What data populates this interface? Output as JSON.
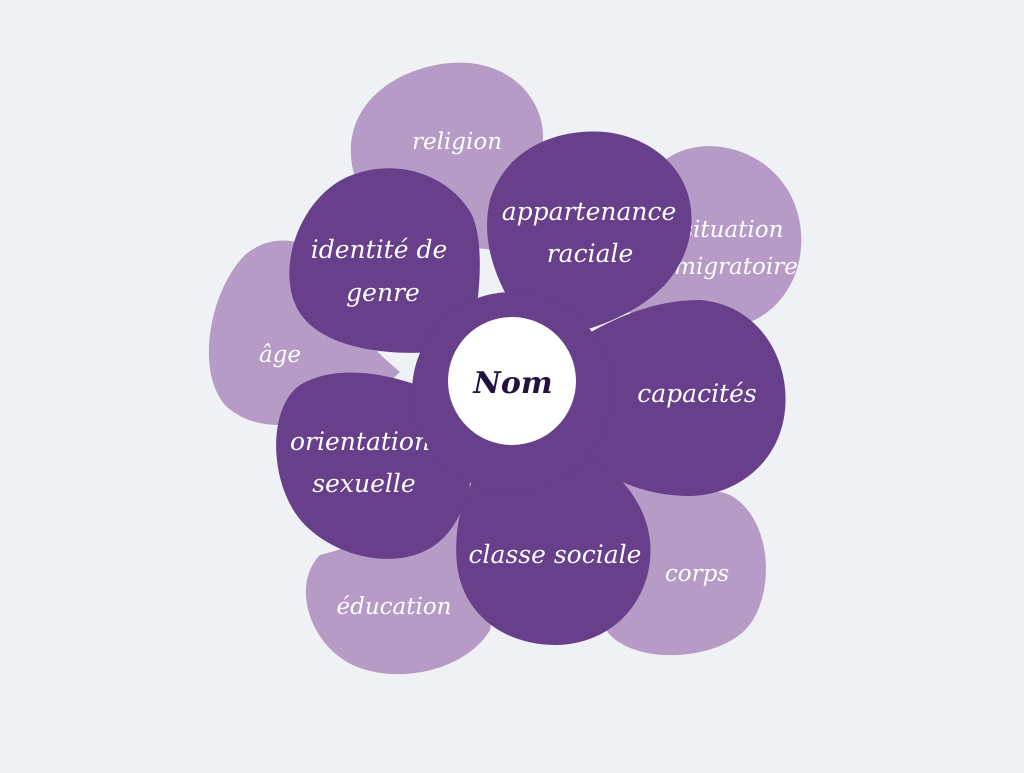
{
  "colors": {
    "background": "#eff1f4",
    "outer_petal": "#b59bc6",
    "inner_petal": "#673f8a",
    "center_fill": "#ffffff",
    "petal_text": "#ffffff",
    "center_text": "#23123f"
  },
  "center": {
    "label": "Nom"
  },
  "outer_petals": {
    "religion": {
      "lines": [
        "religion"
      ]
    },
    "situation_migratoire": {
      "lines": [
        "situation",
        "migratoire"
      ]
    },
    "age": {
      "lines": [
        "âge"
      ]
    },
    "corps": {
      "lines": [
        "corps"
      ]
    },
    "education": {
      "lines": [
        "éducation"
      ]
    }
  },
  "inner_petals": {
    "identite_de_genre": {
      "lines": [
        "identité de",
        "genre"
      ]
    },
    "appartenance_raciale": {
      "lines": [
        "appartenance",
        "raciale"
      ]
    },
    "capacites": {
      "lines": [
        "capacités"
      ]
    },
    "orientation_sexuelle": {
      "lines": [
        "orientation",
        "sexuelle"
      ]
    },
    "classe_sociale": {
      "lines": [
        "classe sociale"
      ]
    }
  }
}
